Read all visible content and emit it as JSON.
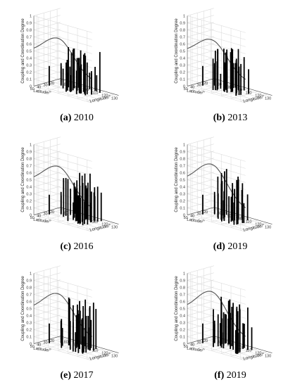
{
  "panels": [
    {
      "letter": "(a)",
      "year": "2010",
      "seed": 11,
      "curvePeak": 0.78,
      "scale": 0.92
    },
    {
      "letter": "(b)",
      "year": "2013",
      "seed": 23,
      "curvePeak": 0.76,
      "scale": 0.9
    },
    {
      "letter": "(c)",
      "year": "2016",
      "seed": 37,
      "curvePeak": 0.79,
      "scale": 0.95
    },
    {
      "letter": "(d)",
      "year": "2019",
      "seed": 41,
      "curvePeak": 0.82,
      "scale": 1.0
    },
    {
      "letter": "(e)",
      "year": "2017",
      "seed": 53,
      "curvePeak": 0.81,
      "scale": 0.98
    },
    {
      "letter": "(f)",
      "year": "2019",
      "seed": 67,
      "curvePeak": 0.84,
      "scale": 1.0
    }
  ],
  "chart_data": {
    "type": "bar3d",
    "zlabel": "Coupling and Coordination Degree",
    "xlabel": "Longitude/°",
    "ylabel": "Latitude/°",
    "xticks": [
      "80",
      "90",
      "100",
      "110",
      "120",
      "130"
    ],
    "yticks": [
      "20",
      "30",
      "40",
      "50"
    ],
    "zticks": [
      "0",
      "0.1",
      "0.2",
      "0.3",
      "0.4",
      "0.5",
      "0.6",
      "0.7",
      "0.8",
      "0.9",
      "1"
    ],
    "zlim": [
      0,
      1
    ],
    "xlim": [
      75,
      135
    ],
    "ylim": [
      15,
      55
    ]
  }
}
